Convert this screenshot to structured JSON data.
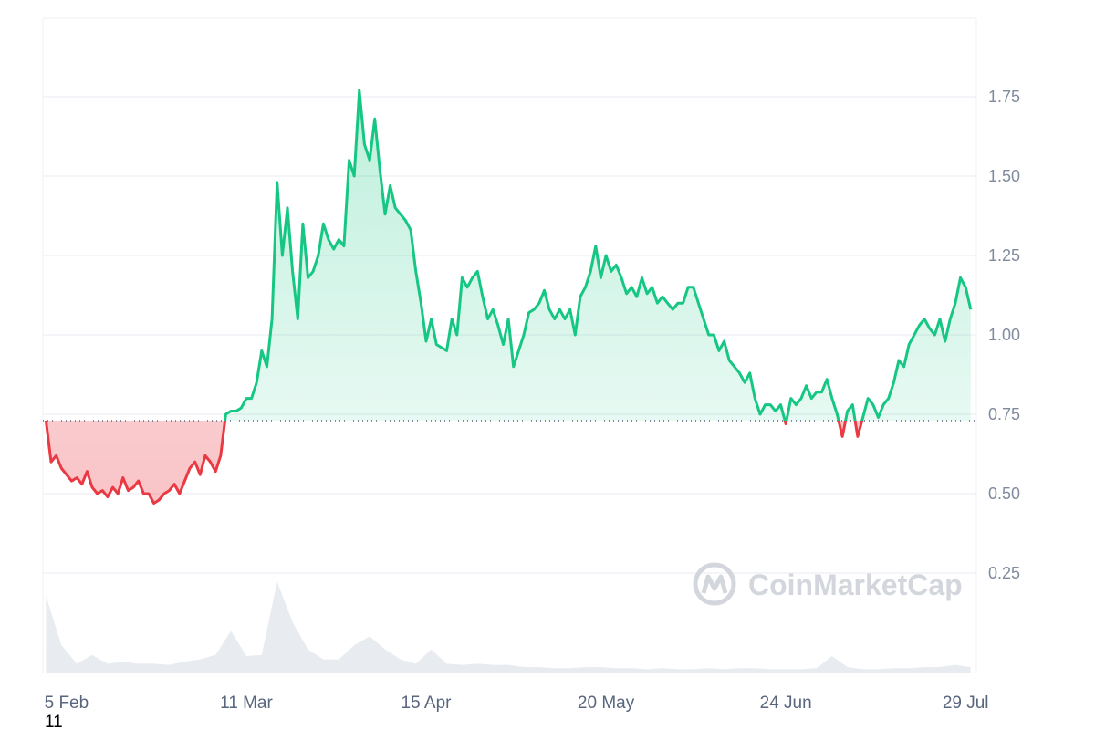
{
  "chart_data": {
    "type": "line",
    "x": [
      -4,
      -3,
      -2,
      -1,
      0,
      1,
      2,
      3,
      4,
      5,
      6,
      7,
      8,
      9,
      10,
      11,
      12,
      13,
      14,
      15,
      16,
      17,
      18,
      19,
      20,
      21,
      22,
      23,
      24,
      25,
      26,
      27,
      28,
      29,
      30,
      31,
      32,
      33,
      34,
      35,
      36,
      37,
      38,
      39,
      40,
      41,
      42,
      43,
      44,
      45,
      46,
      47,
      48,
      49,
      50,
      51,
      52,
      53,
      54,
      55,
      56,
      57,
      58,
      59,
      60,
      61,
      62,
      63,
      64,
      65,
      66,
      67,
      68,
      69,
      70,
      71,
      72,
      73,
      74,
      75,
      76,
      77,
      78,
      79,
      80,
      81,
      82,
      83,
      84,
      85,
      86,
      87,
      88,
      89,
      90,
      91,
      92,
      93,
      94,
      95,
      96,
      97,
      98,
      99,
      100,
      101,
      102,
      103,
      104,
      105,
      106,
      107,
      108,
      109,
      110,
      111,
      112,
      113,
      114,
      115,
      116,
      117,
      118,
      119,
      120,
      121,
      122,
      123,
      124,
      125,
      126,
      127,
      128,
      129,
      130,
      131,
      132,
      133,
      134,
      135,
      136,
      137,
      138,
      139,
      140,
      141,
      142,
      143,
      144,
      145,
      146,
      147,
      148,
      149,
      150,
      151,
      152,
      153,
      154,
      155,
      156,
      157,
      158,
      159,
      160,
      161,
      162,
      163,
      164,
      165,
      166,
      167,
      168,
      169,
      170,
      171,
      172,
      173,
      174,
      175,
      176
    ],
    "series": [
      {
        "color": "#16c784",
        "below_color": "#ea3943",
        "values": [
          0.73,
          0.6,
          0.62,
          0.58,
          0.56,
          0.54,
          0.55,
          0.53,
          0.57,
          0.52,
          0.5,
          0.51,
          0.49,
          0.52,
          0.5,
          0.55,
          0.51,
          0.52,
          0.54,
          0.5,
          0.5,
          0.47,
          0.48,
          0.5,
          0.51,
          0.53,
          0.5,
          0.54,
          0.58,
          0.6,
          0.56,
          0.62,
          0.6,
          0.57,
          0.62,
          0.75,
          0.76,
          0.76,
          0.77,
          0.8,
          0.8,
          0.85,
          0.95,
          0.9,
          1.05,
          1.48,
          1.25,
          1.4,
          1.2,
          1.05,
          1.35,
          1.18,
          1.2,
          1.25,
          1.35,
          1.3,
          1.27,
          1.3,
          1.28,
          1.55,
          1.5,
          1.77,
          1.6,
          1.55,
          1.68,
          1.52,
          1.38,
          1.47,
          1.4,
          1.38,
          1.36,
          1.33,
          1.2,
          1.1,
          0.98,
          1.05,
          0.97,
          0.96,
          0.95,
          1.05,
          1.0,
          1.18,
          1.15,
          1.18,
          1.2,
          1.12,
          1.05,
          1.08,
          1.03,
          0.97,
          1.05,
          0.9,
          0.95,
          1.0,
          1.07,
          1.08,
          1.1,
          1.14,
          1.08,
          1.05,
          1.08,
          1.05,
          1.08,
          1.0,
          1.12,
          1.15,
          1.2,
          1.28,
          1.18,
          1.25,
          1.2,
          1.22,
          1.18,
          1.13,
          1.15,
          1.12,
          1.18,
          1.13,
          1.15,
          1.1,
          1.12,
          1.1,
          1.08,
          1.1,
          1.1,
          1.15,
          1.15,
          1.1,
          1.05,
          1.0,
          1.0,
          0.95,
          0.98,
          0.92,
          0.9,
          0.88,
          0.85,
          0.88,
          0.8,
          0.75,
          0.78,
          0.78,
          0.76,
          0.78,
          0.72,
          0.8,
          0.78,
          0.8,
          0.84,
          0.8,
          0.82,
          0.82,
          0.86,
          0.8,
          0.75,
          0.68,
          0.76,
          0.78,
          0.68,
          0.74,
          0.8,
          0.78,
          0.74,
          0.78,
          0.8,
          0.85,
          0.92,
          0.9,
          0.97,
          1.0,
          1.03,
          1.05,
          1.02,
          1.0,
          1.05,
          0.98,
          1.05,
          1.1,
          1.18,
          1.15,
          1.08
        ]
      }
    ],
    "baseline": 0.73,
    "volume": {
      "color": "#e8ebf0",
      "x": [
        -4,
        -1,
        2,
        5,
        8,
        11,
        14,
        17,
        20,
        23,
        26,
        29,
        32,
        35,
        38,
        41,
        44,
        47,
        50,
        53,
        56,
        59,
        62,
        65,
        68,
        71,
        74,
        77,
        80,
        83,
        86,
        89,
        92,
        95,
        98,
        101,
        104,
        107,
        110,
        113,
        116,
        119,
        122,
        125,
        128,
        131,
        134,
        137,
        140,
        143,
        146,
        149,
        152,
        155,
        158,
        161,
        164,
        167,
        170,
        173,
        176
      ],
      "values": [
        70,
        25,
        8,
        16,
        8,
        10,
        8,
        8,
        7,
        10,
        12,
        16,
        38,
        15,
        16,
        83,
        46,
        21,
        12,
        12,
        25,
        33,
        21,
        12,
        8,
        21,
        8,
        7,
        8,
        7,
        7,
        5,
        5,
        4,
        4,
        5,
        5,
        4,
        4,
        3,
        4,
        3,
        3,
        4,
        3,
        4,
        4,
        3,
        3,
        3,
        4,
        15,
        5,
        3,
        3,
        4,
        4,
        5,
        5,
        7,
        5
      ],
      "ylim": [
        0,
        100
      ]
    },
    "xlim": [
      -4.6,
      177.1
    ],
    "ylim": [
      -0.063,
      1.997
    ],
    "xticks": [
      {
        "value": 0,
        "label": "5 Feb"
      },
      {
        "value": 35,
        "label": "11 Mar"
      },
      {
        "value": 70,
        "label": "15 Apr"
      },
      {
        "value": 105,
        "label": "20 May"
      },
      {
        "value": 140,
        "label": "24 Jun"
      },
      {
        "value": 175,
        "label": "29 Jul"
      }
    ],
    "yticks": [
      0.25,
      {
        "value": 0.5,
        "label": "0.50"
      },
      0.75,
      {
        "value": 1.0,
        "label": "1.00"
      },
      1.25,
      {
        "value": 1.5,
        "label": "1.50"
      },
      1.75
    ],
    "grid": true,
    "watermark": "CoinMarketCap",
    "footer_text": "11"
  }
}
